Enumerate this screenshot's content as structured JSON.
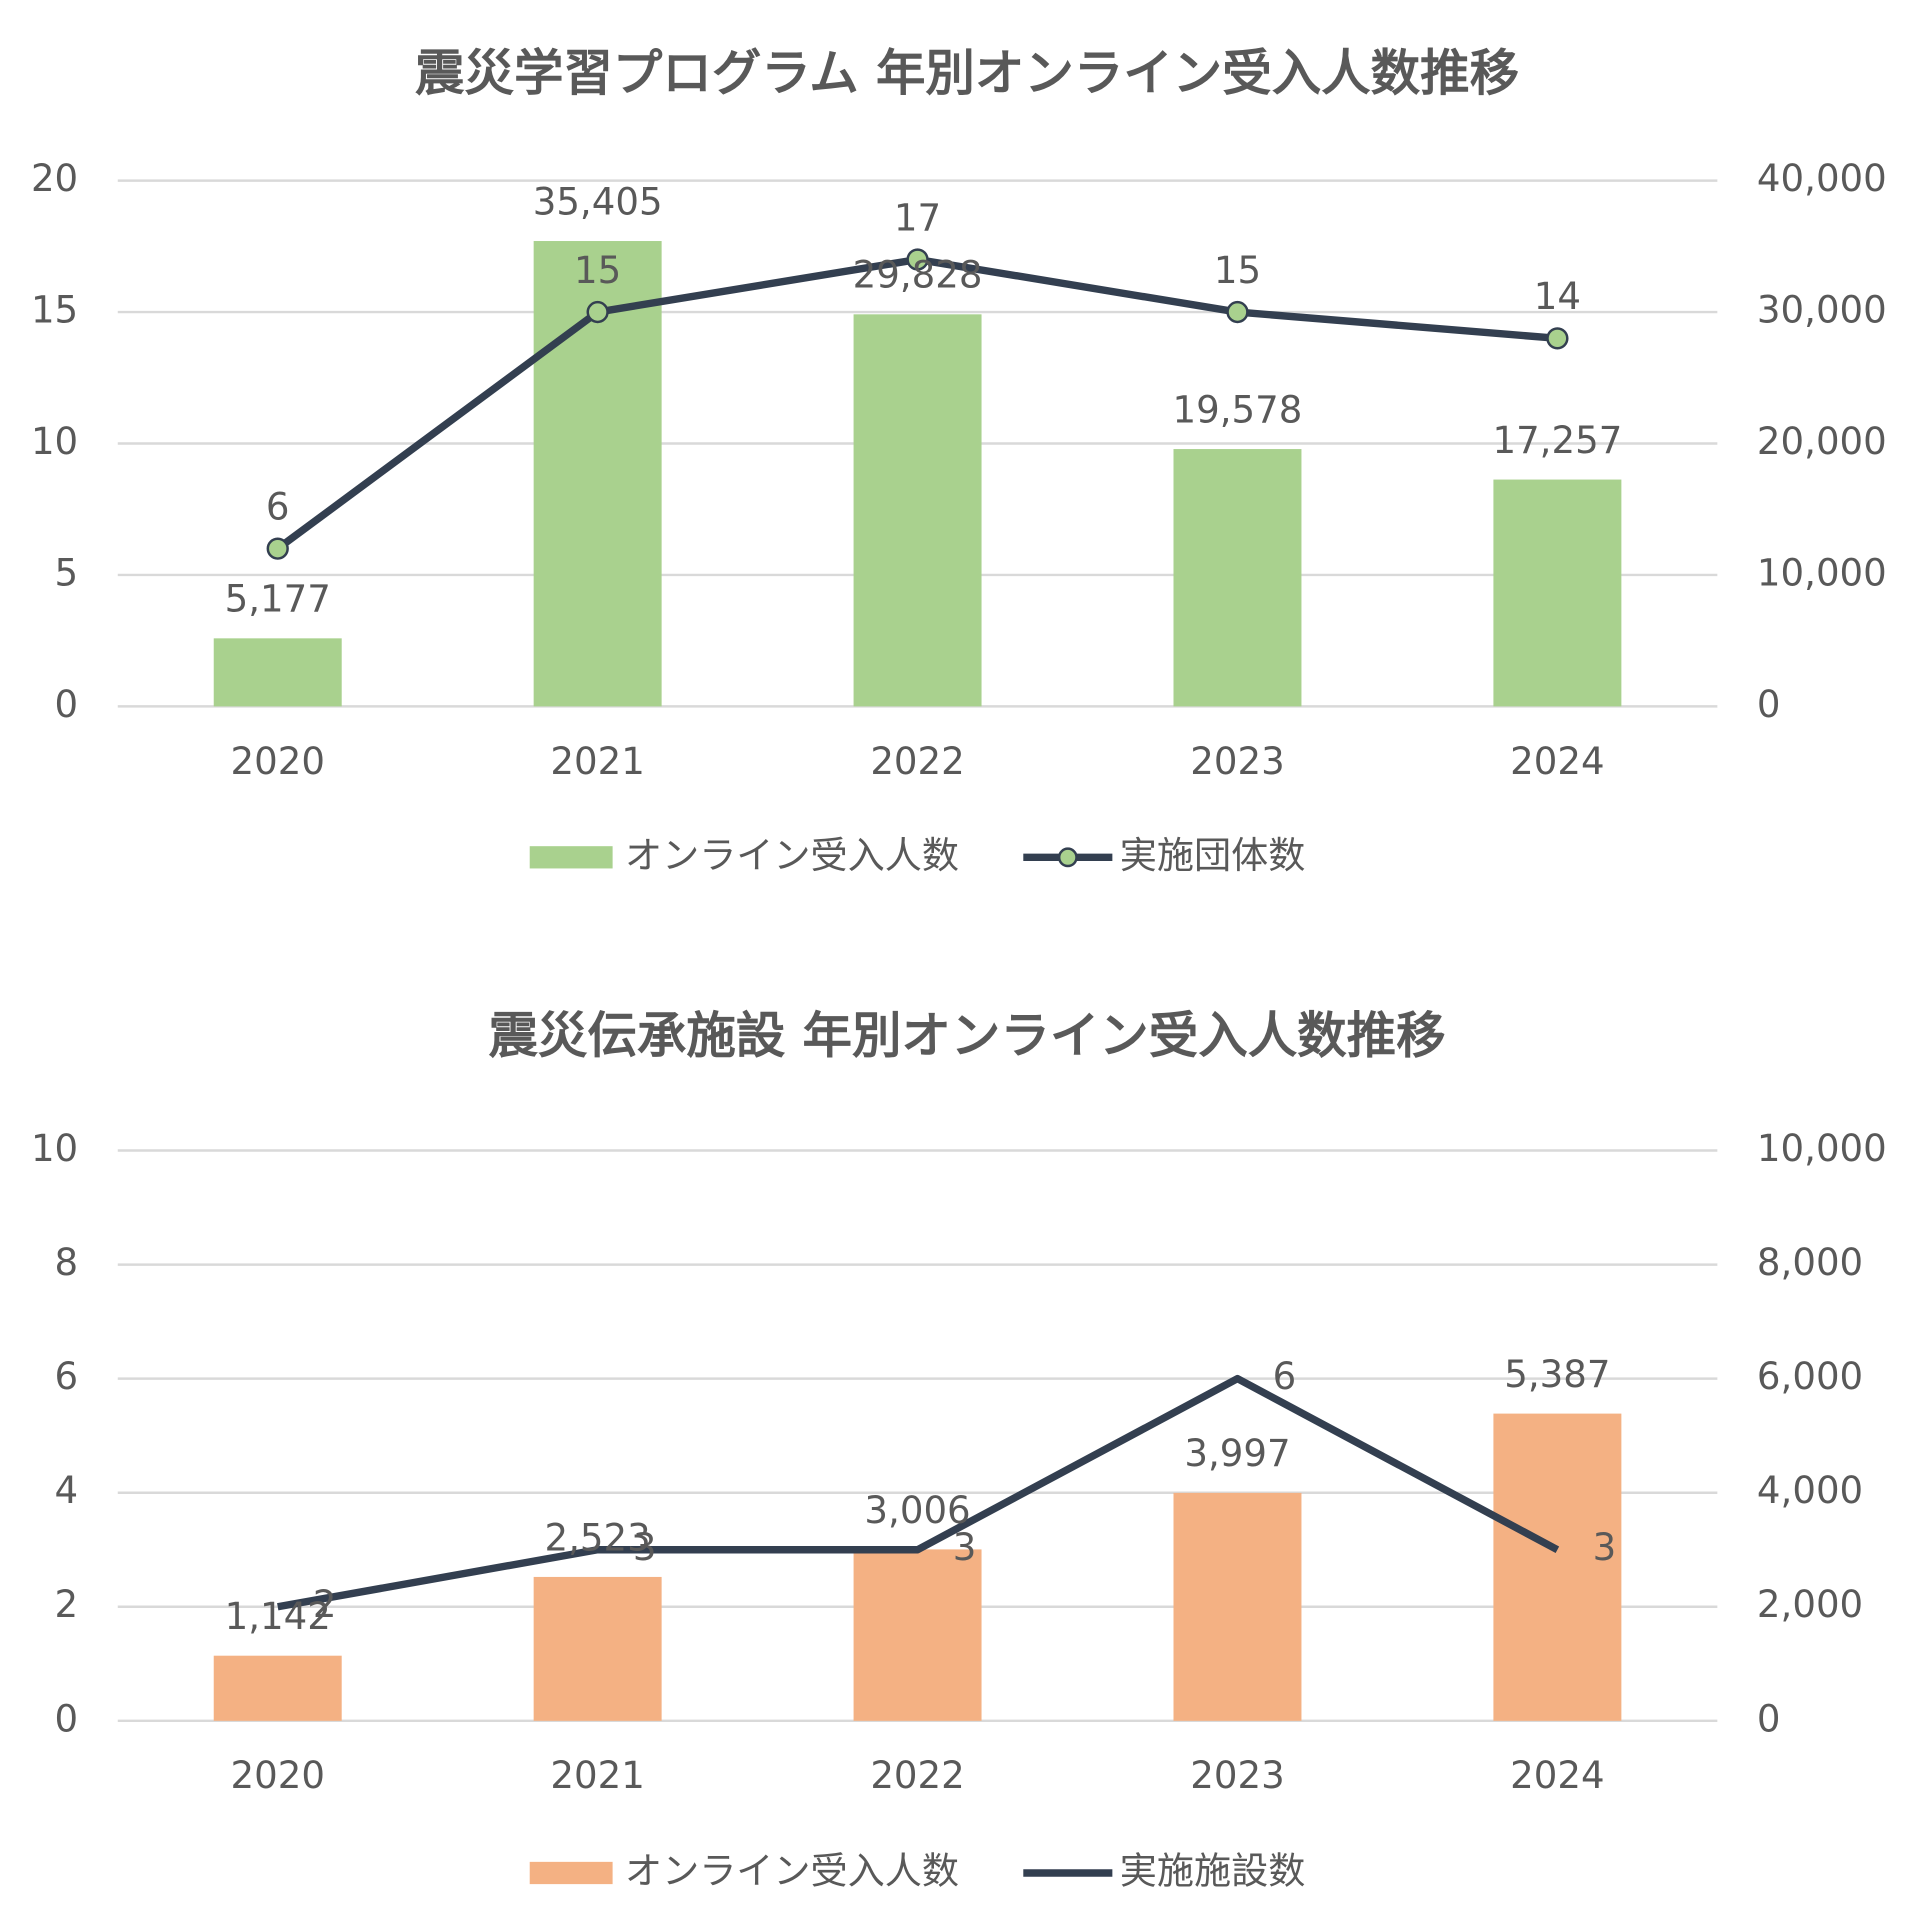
{
  "chart_data": [
    {
      "type": "combo",
      "title": "震災学習プログラム 年別オンライン受入人数推移",
      "categories": [
        "2020",
        "2021",
        "2022",
        "2023",
        "2024"
      ],
      "series": [
        {
          "name": "オンライン受入人数",
          "type": "bar",
          "axis": "y2",
          "color": "#a9d18e",
          "values": [
            5177,
            35405,
            29828,
            19578,
            17257
          ],
          "value_labels": [
            "5,177",
            "35,405",
            "29,828",
            "19,578",
            "17,257"
          ]
        },
        {
          "name": "実施団体数",
          "type": "line",
          "color": "#333f50",
          "markers": true,
          "marker_color": "#a9d18e",
          "values": [
            6,
            15,
            17,
            15,
            14
          ]
        }
      ],
      "ylim": [
        0,
        20
      ],
      "yticks": [
        0,
        5,
        10,
        15,
        20
      ],
      "y2lim": [
        0,
        40000
      ],
      "y2ticks": [
        0,
        {
          "value": 10000,
          "label": "10,000"
        },
        {
          "value": 20000,
          "label": "20,000"
        },
        {
          "value": 30000,
          "label": "30,000"
        },
        {
          "value": 40000,
          "label": "40,000"
        }
      ],
      "grid": true,
      "legend": "bottom"
    },
    {
      "type": "combo",
      "title": "震災伝承施設 年別オンライン受入人数推移",
      "categories": [
        "2020",
        "2021",
        "2022",
        "2023",
        "2024"
      ],
      "series": [
        {
          "name": "オンライン受入人数",
          "type": "bar",
          "axis": "y2",
          "color": "#f4b183",
          "values": [
            1142,
            2523,
            3006,
            3997,
            5387
          ],
          "value_labels": [
            "1,142",
            "2,523",
            "3,006",
            "3,997",
            "5,387"
          ]
        },
        {
          "name": "実施施設数",
          "type": "line",
          "color": "#333f50",
          "markers": false,
          "values": [
            2,
            3,
            3,
            6,
            3
          ]
        }
      ],
      "ylim": [
        0,
        10
      ],
      "yticks": [
        0,
        2,
        4,
        6,
        8,
        10
      ],
      "y2lim": [
        0,
        10000
      ],
      "y2ticks": [
        0,
        {
          "value": 2000,
          "label": "2,000"
        },
        {
          "value": 4000,
          "label": "4,000"
        },
        {
          "value": 6000,
          "label": "6,000"
        },
        {
          "value": 8000,
          "label": "8,000"
        },
        {
          "value": 10000,
          "label": "10,000"
        }
      ],
      "grid": true,
      "legend": "bottom"
    }
  ]
}
